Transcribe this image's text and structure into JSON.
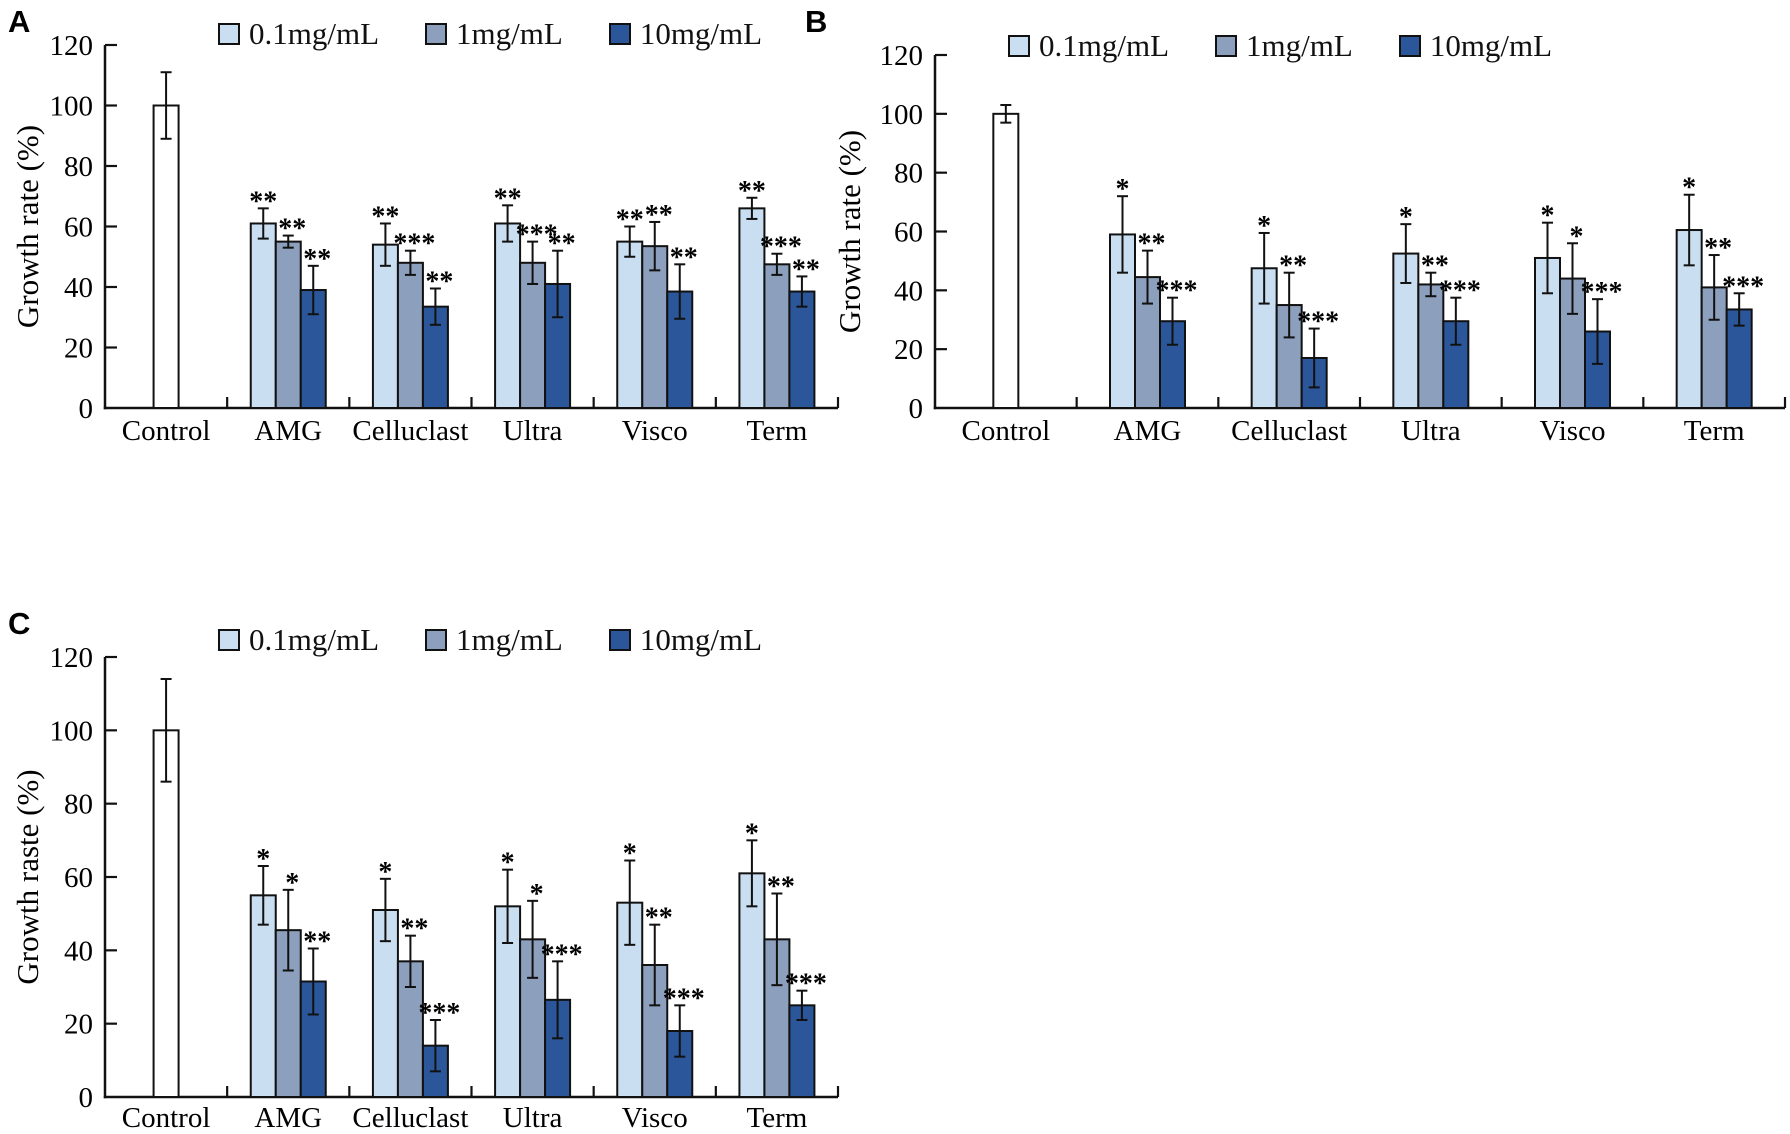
{
  "colors": {
    "series": [
      "#c9def1",
      "#8c9fbc",
      "#2b579a"
    ],
    "control_fill": "#ffffff",
    "stroke": "#111111"
  },
  "chart_data": [
    {
      "type": "bar",
      "panel": "A",
      "ylabel": "Growth rate (%)",
      "ylim": [
        0,
        120
      ],
      "yticks": [
        0,
        20,
        40,
        60,
        80,
        100,
        120
      ],
      "grid": false,
      "legend_position": "top",
      "legend": [
        "0.1mg/mL",
        "1mg/mL",
        "10mg/mL"
      ],
      "categories": [
        "Control",
        "AMG",
        "Celluclast",
        "Ultra",
        "Visco",
        "Term"
      ],
      "control": {
        "category": "Control",
        "value": 100,
        "error": 11
      },
      "series": [
        {
          "name": "0.1mg/mL",
          "color": "#c9def1",
          "values": [
            61,
            54,
            61,
            55,
            66
          ],
          "errors": [
            5,
            7,
            6,
            5,
            3.5
          ],
          "significance": [
            "**",
            "**",
            "**",
            "**",
            "**"
          ]
        },
        {
          "name": "1mg/mL",
          "color": "#8c9fbc",
          "values": [
            55,
            48,
            48,
            53.5,
            47.5
          ],
          "errors": [
            2,
            4,
            7,
            8,
            3.5
          ],
          "significance": [
            "**",
            "***",
            "***",
            "**",
            "***"
          ]
        },
        {
          "name": "10mg/mL",
          "color": "#2b579a",
          "values": [
            39,
            33.5,
            41,
            38.5,
            38.5
          ],
          "errors": [
            8,
            6,
            11,
            9,
            5
          ],
          "significance": [
            "**",
            "**",
            "**",
            "**",
            "**"
          ]
        }
      ]
    },
    {
      "type": "bar",
      "panel": "B",
      "ylabel": "Growth rate (%)",
      "ylim": [
        0,
        120
      ],
      "yticks": [
        0,
        20,
        40,
        60,
        80,
        100,
        120
      ],
      "grid": false,
      "legend_position": "top",
      "legend": [
        "0.1mg/mL",
        "1mg/mL",
        "10mg/mL"
      ],
      "categories": [
        "Control",
        "AMG",
        "Celluclast",
        "Ultra",
        "Visco",
        "Term"
      ],
      "control": {
        "category": "Control",
        "value": 100,
        "error": 3
      },
      "series": [
        {
          "name": "0.1mg/mL",
          "color": "#c9def1",
          "values": [
            59,
            47.5,
            52.5,
            51,
            60.5
          ],
          "errors": [
            13,
            12,
            10,
            12,
            12
          ],
          "significance": [
            "*",
            "*",
            "*",
            "*",
            "*"
          ]
        },
        {
          "name": "1mg/mL",
          "color": "#8c9fbc",
          "values": [
            44.5,
            35,
            42,
            44,
            41
          ],
          "errors": [
            9,
            11,
            4,
            12,
            11
          ],
          "significance": [
            "**",
            "**",
            "**",
            "*",
            "**"
          ]
        },
        {
          "name": "10mg/mL",
          "color": "#2b579a",
          "values": [
            29.5,
            17,
            29.5,
            26,
            33.5
          ],
          "errors": [
            8,
            10,
            8,
            11,
            5.5
          ],
          "significance": [
            "***",
            "***",
            "***",
            "***",
            "***"
          ]
        }
      ]
    },
    {
      "type": "bar",
      "panel": "C",
      "ylabel": "Growth raste (%)",
      "ylim": [
        0,
        120
      ],
      "yticks": [
        0,
        20,
        40,
        60,
        80,
        100,
        120
      ],
      "grid": false,
      "legend_position": "top",
      "legend": [
        "0.1mg/mL",
        "1mg/mL",
        "10mg/mL"
      ],
      "categories": [
        "Control",
        "AMG",
        "Celluclast",
        "Ultra",
        "Visco",
        "Term"
      ],
      "control": {
        "category": "Control",
        "value": 100,
        "error": 14
      },
      "series": [
        {
          "name": "0.1mg/mL",
          "color": "#c9def1",
          "values": [
            55,
            51,
            52,
            53,
            61
          ],
          "errors": [
            8,
            8.5,
            10,
            11.5,
            9
          ],
          "significance": [
            "*",
            "*",
            "*",
            "*",
            "*"
          ]
        },
        {
          "name": "1mg/mL",
          "color": "#8c9fbc",
          "values": [
            45.5,
            37,
            43,
            36,
            43
          ],
          "errors": [
            11,
            7,
            10.5,
            11,
            12.5
          ],
          "significance": [
            "*",
            "**",
            "*",
            "**",
            "**"
          ]
        },
        {
          "name": "10mg/mL",
          "color": "#2b579a",
          "values": [
            31.5,
            14,
            26.5,
            18,
            25
          ],
          "errors": [
            9,
            7,
            10.5,
            7,
            4
          ],
          "significance": [
            "**",
            "***",
            "***",
            "***",
            "***"
          ]
        }
      ]
    }
  ]
}
